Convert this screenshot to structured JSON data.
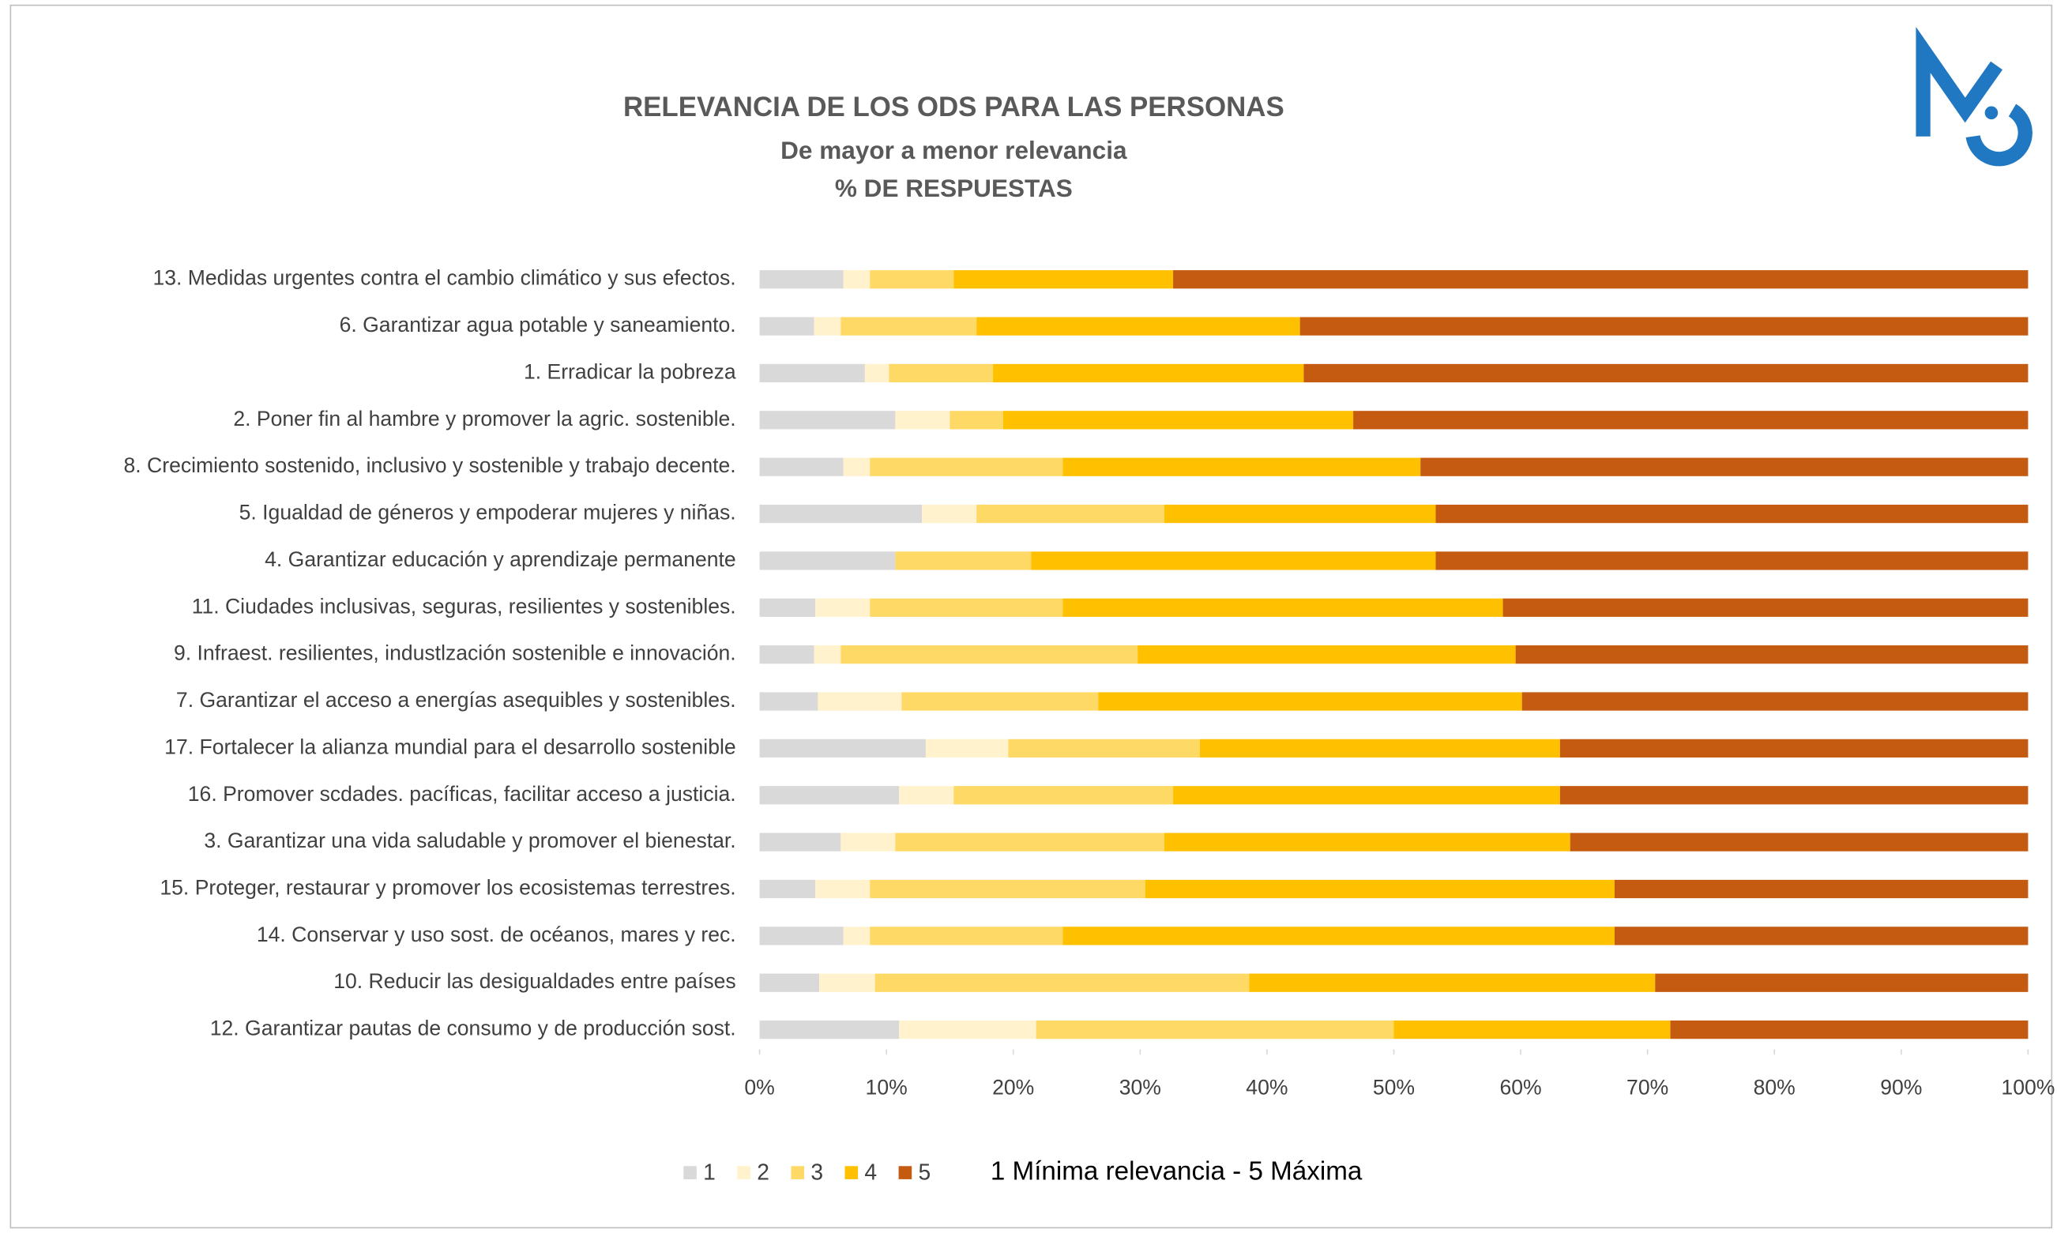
{
  "chart_data": {
    "type": "stacked_barh",
    "title": "RELEVANCIA DE LOS ODS PARA LAS PERSONAS",
    "subtitle": "De mayor a menor relevancia",
    "subtitle2": "% DE RESPUESTAS",
    "note": "1 Mínima relevancia - 5 Máxima",
    "categories": [
      "13. Medidas urgentes contra el cambio climático y sus efectos.",
      "6. Garantizar agua potable y saneamiento.",
      "1. Erradicar la pobreza",
      "2. Poner fin al hambre y promover la agric. sostenible.",
      "8. Crecimiento sostenido, inclusivo y sostenible y trabajo decente.",
      "5. Igualdad de géneros y empoderar  mujeres y niñas.",
      "4. Garantizar educación y aprendizaje permanente",
      "11. Ciudades inclusivas, seguras, resilientes y sostenibles.",
      "9. Infraest. resilientes, industlzación sostenible e innovación.",
      "7. Garantizar el acceso a energías asequibles y sostenibles.",
      "17. Fortalecer la alianza mundial para el desarrollo sostenible",
      "16. Promover scdades. pacíficas, facilitar acceso a justicia.",
      "3. Garantizar una vida saludable y promover el bienestar.",
      "15. Proteger, restaurar y promover los ecosistemas terrestres.",
      "14. Conservar y uso sost. de océanos, mares y rec.",
      "10. Reducir las desigualdades entre países",
      "12. Garantizar pautas de consumo y de producción sost."
    ],
    "series": [
      {
        "name": "1",
        "color": "#d9d9d9",
        "values": [
          6.6,
          4.3,
          8.3,
          10.7,
          6.6,
          12.8,
          10.7,
          4.4,
          4.3,
          4.6,
          13.1,
          11.0,
          6.4,
          4.4,
          6.6,
          4.7,
          11.0
        ]
      },
      {
        "name": "2",
        "color": "#fff2cc",
        "values": [
          2.1,
          2.1,
          1.9,
          4.3,
          2.1,
          4.3,
          0,
          4.3,
          2.1,
          6.6,
          6.5,
          4.3,
          4.3,
          4.3,
          2.1,
          4.4,
          10.8
        ]
      },
      {
        "name": "3",
        "color": "#ffd966",
        "values": [
          6.6,
          10.7,
          8.2,
          4.2,
          15.2,
          14.8,
          10.7,
          15.2,
          23.4,
          15.5,
          15.1,
          17.3,
          21.2,
          21.7,
          15.2,
          29.5,
          28.2
        ]
      },
      {
        "name": "4",
        "color": "#ffc000",
        "values": [
          17.3,
          25.5,
          24.5,
          27.6,
          28.2,
          21.4,
          31.9,
          34.7,
          29.8,
          33.4,
          28.4,
          30.5,
          32.0,
          37.0,
          43.5,
          32.0,
          21.8
        ]
      },
      {
        "name": "5",
        "color": "#c55a11",
        "values": [
          67.4,
          57.4,
          57.1,
          53.2,
          47.9,
          46.7,
          46.7,
          41.4,
          40.4,
          39.9,
          36.9,
          36.9,
          36.1,
          32.6,
          32.6,
          29.4,
          28.2
        ]
      }
    ],
    "xlim": [
      0,
      100
    ],
    "xticks": [
      {
        "value": 0,
        "label": "0%"
      },
      {
        "value": 10,
        "label": "10%"
      },
      {
        "value": 20,
        "label": "20%"
      },
      {
        "value": 30,
        "label": "30%"
      },
      {
        "value": 40,
        "label": "40%"
      },
      {
        "value": 50,
        "label": "50%"
      },
      {
        "value": 60,
        "label": "60%"
      },
      {
        "value": 70,
        "label": "70%"
      },
      {
        "value": 80,
        "label": "80%"
      },
      {
        "value": 90,
        "label": "90%"
      },
      {
        "value": 100,
        "label": "100%"
      }
    ],
    "legend": "bottom"
  }
}
